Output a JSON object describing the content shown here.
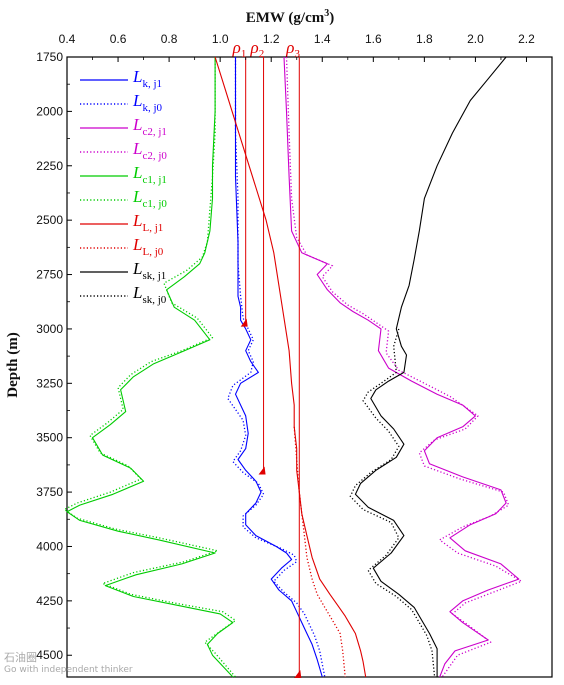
{
  "chart_data": {
    "type": "line",
    "xlabel": "EMW (g/cm",
    "xlabel_sup": "3",
    "xlabel_end": ")",
    "ylabel": "Depth (m)",
    "xlim": [
      0.4,
      2.3
    ],
    "ylim": [
      1750,
      4600
    ],
    "x_axis_position": "top",
    "y_inverted": true,
    "grid": false,
    "legend_position": "top-left",
    "xticks": [
      "0.4",
      "0.6",
      "0.8",
      "1.0",
      "1.2",
      "1.4",
      "1.6",
      "1.8",
      "2.0",
      "2.2"
    ],
    "yticks": [
      "1750",
      "2000",
      "2250",
      "2500",
      "2750",
      "3000",
      "3250",
      "3500",
      "3750",
      "4000",
      "4250",
      "4500"
    ],
    "series": [
      {
        "name": "L_k,j1",
        "color": "#0000ff",
        "dash": "solid",
        "x": [
          1.06,
          1.06,
          1.06,
          1.07,
          1.07,
          1.07,
          1.08,
          1.08,
          1.1,
          1.12,
          1.1,
          1.12,
          1.15,
          1.08,
          1.06,
          1.1,
          1.11,
          1.1,
          1.07,
          1.1,
          1.14,
          1.16,
          1.14,
          1.1,
          1.1,
          1.14,
          1.22,
          1.26,
          1.28,
          1.24,
          1.2,
          1.23,
          1.28,
          1.3,
          1.32,
          1.34,
          1.36,
          1.38,
          1.4
        ],
        "y": [
          1750,
          2000,
          2300,
          2600,
          2750,
          2850,
          2900,
          2960,
          3000,
          3050,
          3100,
          3150,
          3200,
          3250,
          3300,
          3400,
          3480,
          3550,
          3600,
          3650,
          3700,
          3750,
          3800,
          3850,
          3900,
          3950,
          4000,
          4030,
          4060,
          4100,
          4150,
          4200,
          4250,
          4300,
          4350,
          4400,
          4450,
          4520,
          4600
        ]
      },
      {
        "name": "L_k,j0",
        "color": "#0000ff",
        "dash": "dotted",
        "x": [
          1.06,
          1.06,
          1.07,
          1.07,
          1.08,
          1.09,
          1.11,
          1.13,
          1.11,
          1.13,
          1.12,
          1.05,
          1.03,
          1.09,
          1.1,
          1.08,
          1.05,
          1.09,
          1.15,
          1.17,
          1.14,
          1.09,
          1.09,
          1.14,
          1.24,
          1.29,
          1.3,
          1.25,
          1.21,
          1.25,
          1.3,
          1.33,
          1.35,
          1.37,
          1.39,
          1.41
        ],
        "y": [
          1750,
          2100,
          2400,
          2700,
          2850,
          2950,
          3000,
          3050,
          3100,
          3150,
          3200,
          3260,
          3320,
          3420,
          3490,
          3560,
          3610,
          3660,
          3710,
          3760,
          3810,
          3860,
          3910,
          3960,
          4010,
          4040,
          4070,
          4110,
          4160,
          4210,
          4260,
          4310,
          4360,
          4410,
          4480,
          4600
        ]
      },
      {
        "name": "L_c2,j1",
        "color": "#cc00cc",
        "dash": "solid",
        "x": [
          1.25,
          1.26,
          1.27,
          1.28,
          1.32,
          1.42,
          1.38,
          1.42,
          1.47,
          1.52,
          1.58,
          1.63,
          1.62,
          1.66,
          1.75,
          1.85,
          1.95,
          2.0,
          1.95,
          1.85,
          1.8,
          1.82,
          1.95,
          2.1,
          2.12,
          2.08,
          1.98,
          1.9,
          1.96,
          2.1,
          2.17,
          2.05,
          1.95,
          1.9,
          1.95,
          2.05,
          1.92,
          1.88,
          1.86
        ],
        "y": [
          1750,
          2000,
          2300,
          2550,
          2650,
          2700,
          2750,
          2820,
          2880,
          2920,
          2960,
          3000,
          3100,
          3180,
          3240,
          3300,
          3350,
          3400,
          3450,
          3500,
          3560,
          3620,
          3680,
          3740,
          3800,
          3850,
          3900,
          3960,
          4020,
          4080,
          4150,
          4200,
          4250,
          4300,
          4350,
          4430,
          4480,
          4540,
          4600
        ]
      },
      {
        "name": "L_c2,j0",
        "color": "#cc00cc",
        "dash": "dotted",
        "x": [
          1.26,
          1.27,
          1.28,
          1.3,
          1.34,
          1.44,
          1.4,
          1.44,
          1.5,
          1.56,
          1.61,
          1.66,
          1.65,
          1.7,
          1.8,
          1.9,
          2.01,
          1.96,
          1.84,
          1.78,
          1.8,
          1.94,
          2.11,
          2.13,
          2.06,
          1.95,
          1.86,
          1.93,
          2.08,
          2.18,
          2.07,
          1.96,
          1.91,
          1.97,
          2.06,
          1.93,
          1.87
        ],
        "y": [
          1750,
          2100,
          2400,
          2580,
          2660,
          2710,
          2760,
          2830,
          2890,
          2930,
          2970,
          3010,
          3110,
          3190,
          3250,
          3310,
          3400,
          3460,
          3510,
          3570,
          3630,
          3690,
          3750,
          3810,
          3860,
          3910,
          3970,
          4030,
          4090,
          4160,
          4210,
          4260,
          4310,
          4360,
          4440,
          4500,
          4600
        ]
      },
      {
        "name": "L_c1,j1",
        "color": "#00cc00",
        "dash": "solid",
        "x": [
          0.98,
          0.98,
          0.97,
          0.97,
          0.96,
          0.94,
          0.92,
          0.86,
          0.79,
          0.82,
          0.9,
          0.96,
          0.86,
          0.74,
          0.66,
          0.61,
          0.63,
          0.57,
          0.5,
          0.54,
          0.65,
          0.7,
          0.58,
          0.45,
          0.4,
          0.45,
          0.6,
          0.76,
          0.98,
          0.85,
          0.67,
          0.55,
          0.66,
          0.83,
          1.0,
          1.05,
          0.99,
          0.95,
          0.97,
          1.05
        ],
        "y": [
          1750,
          2000,
          2250,
          2400,
          2550,
          2650,
          2700,
          2760,
          2820,
          2900,
          2960,
          3050,
          3100,
          3160,
          3220,
          3280,
          3380,
          3440,
          3500,
          3580,
          3640,
          3700,
          3760,
          3810,
          3840,
          3880,
          3930,
          3970,
          4030,
          4080,
          4130,
          4180,
          4230,
          4270,
          4310,
          4350,
          4400,
          4450,
          4500,
          4600
        ]
      },
      {
        "name": "L_c1,j0",
        "color": "#00cc00",
        "dash": "dotted",
        "x": [
          0.98,
          0.98,
          0.97,
          0.96,
          0.95,
          0.93,
          0.87,
          0.78,
          0.81,
          0.91,
          0.97,
          0.85,
          0.73,
          0.65,
          0.6,
          0.62,
          0.56,
          0.49,
          0.53,
          0.64,
          0.69,
          0.57,
          0.44,
          0.39,
          0.44,
          0.59,
          0.76,
          0.99,
          0.86,
          0.66,
          0.54,
          0.65,
          0.82,
          1.01,
          1.06,
          1.0,
          0.94,
          0.98,
          1.06
        ],
        "y": [
          1750,
          2100,
          2300,
          2450,
          2600,
          2670,
          2730,
          2790,
          2880,
          2950,
          3040,
          3100,
          3150,
          3210,
          3270,
          3370,
          3430,
          3490,
          3570,
          3630,
          3690,
          3750,
          3800,
          3830,
          3870,
          3920,
          3960,
          4020,
          4070,
          4120,
          4170,
          4220,
          4260,
          4300,
          4340,
          4390,
          4440,
          4490,
          4600
        ]
      },
      {
        "name": "L_L,j1",
        "color": "#e00000",
        "dash": "solid",
        "x": [
          0.98,
          1.02,
          1.06,
          1.1,
          1.14,
          1.18,
          1.21,
          1.23,
          1.25,
          1.27,
          1.28,
          1.29,
          1.29,
          1.3,
          1.3,
          1.31,
          1.32,
          1.34,
          1.36,
          1.39,
          1.43,
          1.46,
          1.49,
          1.51,
          1.53,
          1.54,
          1.55,
          1.56,
          1.57
        ],
        "y": [
          1750,
          1900,
          2050,
          2200,
          2350,
          2500,
          2650,
          2800,
          2950,
          3100,
          3250,
          3350,
          3450,
          3550,
          3650,
          3750,
          3850,
          3950,
          4050,
          4150,
          4220,
          4270,
          4320,
          4360,
          4400,
          4440,
          4480,
          4530,
          4600
        ]
      },
      {
        "name": "L_L,j0",
        "color": "#e00000",
        "dash": "dotted",
        "x": [
          1.29,
          1.3,
          1.31,
          1.32,
          1.33,
          1.34,
          1.36,
          1.38,
          1.41,
          1.44,
          1.47,
          1.48,
          1.49
        ],
        "y": [
          3450,
          3600,
          3750,
          3850,
          3950,
          4050,
          4150,
          4220,
          4280,
          4340,
          4400,
          4480,
          4600
        ]
      },
      {
        "name": "L_sk,j1",
        "color": "#000000",
        "dash": "solid",
        "x": [
          2.12,
          2.05,
          1.98,
          1.91,
          1.85,
          1.8,
          1.78,
          1.76,
          1.74,
          1.71,
          1.69,
          1.71,
          1.73,
          1.72,
          1.66,
          1.61,
          1.59,
          1.63,
          1.68,
          1.72,
          1.69,
          1.61,
          1.55,
          1.53,
          1.58,
          1.68,
          1.72,
          1.67,
          1.6,
          1.63,
          1.7,
          1.76,
          1.79,
          1.82,
          1.85,
          1.85
        ],
        "y": [
          1750,
          1850,
          1950,
          2100,
          2250,
          2400,
          2550,
          2680,
          2800,
          2900,
          3000,
          3080,
          3120,
          3200,
          3240,
          3280,
          3320,
          3400,
          3460,
          3530,
          3590,
          3650,
          3710,
          3760,
          3820,
          3880,
          3950,
          4030,
          4100,
          4160,
          4220,
          4280,
          4340,
          4400,
          4470,
          4600
        ]
      },
      {
        "name": "L_sk,j0",
        "color": "#000000",
        "dash": "dotted",
        "x": [
          1.7,
          1.68,
          1.69,
          1.63,
          1.58,
          1.56,
          1.61,
          1.66,
          1.7,
          1.67,
          1.59,
          1.53,
          1.51,
          1.56,
          1.67,
          1.7,
          1.65,
          1.58,
          1.61,
          1.69,
          1.75,
          1.78,
          1.81,
          1.83,
          1.84
        ],
        "y": [
          3000,
          3080,
          3200,
          3250,
          3290,
          3330,
          3410,
          3470,
          3540,
          3600,
          3660,
          3720,
          3770,
          3830,
          3890,
          3960,
          4040,
          4110,
          4170,
          4230,
          4290,
          4350,
          4410,
          4480,
          4600
        ]
      }
    ],
    "vertical_lines": [
      {
        "label": "ρ",
        "sub": "1",
        "x": 1.1,
        "y_end": 2980
      },
      {
        "label": "ρ",
        "sub": "2",
        "x": 1.17,
        "y_end": 3660
      },
      {
        "label": "ρ",
        "sub": "3",
        "x": 1.31,
        "y_end": 4600
      }
    ],
    "legend": [
      {
        "main": "L",
        "sub": "k, j1",
        "color": "#0000ff",
        "dash": "solid"
      },
      {
        "main": "L",
        "sub": "k, j0",
        "color": "#0000ff",
        "dash": "dotted"
      },
      {
        "main": "L",
        "sub": "c2, j1",
        "color": "#cc00cc",
        "dash": "solid"
      },
      {
        "main": "L",
        "sub": "c2, j0",
        "color": "#cc00cc",
        "dash": "dotted"
      },
      {
        "main": "L",
        "sub": "c1, j1",
        "color": "#00cc00",
        "dash": "solid"
      },
      {
        "main": "L",
        "sub": "c1, j0",
        "color": "#00cc00",
        "dash": "dotted"
      },
      {
        "main": "L",
        "sub": "L, j1",
        "color": "#e00000",
        "dash": "solid"
      },
      {
        "main": "L",
        "sub": "L, j0",
        "color": "#e00000",
        "dash": "dotted"
      },
      {
        "main": "L",
        "sub": "sk, j1",
        "color": "#000000",
        "dash": "solid"
      },
      {
        "main": "L",
        "sub": "sk, j0",
        "color": "#000000",
        "dash": "dotted"
      }
    ]
  },
  "watermark": {
    "line1": "石油圈",
    "line2": "Go with independent thinker"
  }
}
